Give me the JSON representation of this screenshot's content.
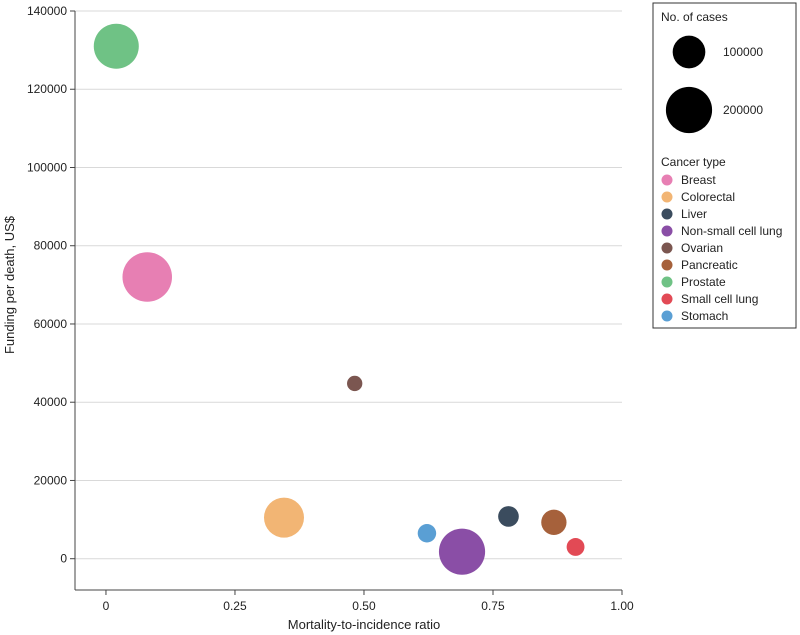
{
  "chart_data": {
    "type": "bubble",
    "xlabel": "Mortality-to-incidence ratio",
    "ylabel": "Funding per death, US$",
    "xlim": [
      -0.06,
      1.0
    ],
    "ylim": [
      -8000,
      140000
    ],
    "xticks": [
      0,
      0.25,
      0.5,
      0.75,
      1.0
    ],
    "xtick_labels": [
      "0",
      "0.25",
      "0.50",
      "0.75",
      "1.00"
    ],
    "yticks": [
      0,
      20000,
      40000,
      60000,
      80000,
      100000,
      120000,
      140000
    ],
    "ytick_labels": [
      "0",
      "20000",
      "40000",
      "60000",
      "80000",
      "100000",
      "120000",
      "140000"
    ],
    "grid": "horizontal",
    "size_legend": {
      "title": "No. of cases",
      "entries": [
        {
          "label": "100000",
          "value": 100000
        },
        {
          "label": "200000",
          "value": 200000
        }
      ]
    },
    "color_legend_title": "Cancer type",
    "series": [
      {
        "name": "Breast",
        "x": 0.08,
        "y": 72000,
        "cases": 230000,
        "color": "#e77fb3"
      },
      {
        "name": "Colorectal",
        "x": 0.345,
        "y": 10500,
        "cases": 150000,
        "color": "#f2b574"
      },
      {
        "name": "Liver",
        "x": 0.78,
        "y": 10800,
        "cases": 40000,
        "color": "#3b4c5e"
      },
      {
        "name": "Non-small cell lung",
        "x": 0.69,
        "y": 1800,
        "cases": 200000,
        "color": "#8a4ea6"
      },
      {
        "name": "Ovarian",
        "x": 0.482,
        "y": 44800,
        "cases": 22000,
        "color": "#7b5650"
      },
      {
        "name": "Pancreatic",
        "x": 0.868,
        "y": 9300,
        "cases": 60000,
        "color": "#a6613b"
      },
      {
        "name": "Prostate",
        "x": 0.02,
        "y": 131000,
        "cases": 190000,
        "color": "#6fc285"
      },
      {
        "name": "Small cell lung",
        "x": 0.91,
        "y": 3000,
        "cases": 30000,
        "color": "#e24a55"
      },
      {
        "name": "Stomach",
        "x": 0.622,
        "y": 6500,
        "cases": 32000,
        "color": "#5a9fd4"
      }
    ]
  }
}
